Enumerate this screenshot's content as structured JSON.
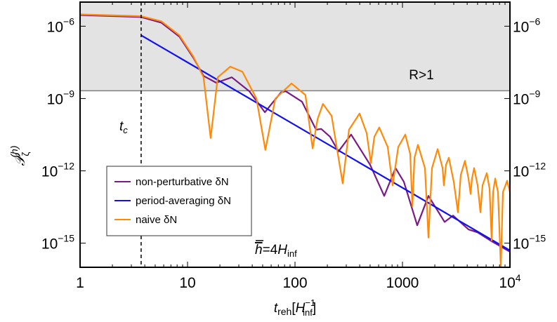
{
  "chart_data": {
    "type": "line",
    "x_scale": "log",
    "y_scale": "log",
    "xlim": [
      1,
      10000
    ],
    "ylim": [
      1e-16,
      1e-05
    ],
    "grid": false,
    "legend_position": "bottom-left",
    "xlabel": {
      "main": "t",
      "sub": "reh",
      "bracket_open": "[",
      "unit": "H",
      "unit_sup": "−1",
      "unit_sub": "inf",
      "bracket_close": "]"
    },
    "ylabel": {
      "main": "𝒫",
      "sub": "ζ",
      "sup": "(h)"
    },
    "x_ticks": [
      {
        "value": 1,
        "label": "1"
      },
      {
        "value": 10,
        "label": "10"
      },
      {
        "value": 100,
        "label": "100"
      },
      {
        "value": 1000,
        "label": "1000"
      },
      {
        "value": 10000,
        "label": "10",
        "sup": "4"
      }
    ],
    "y_ticks": [
      {
        "value": 1e-06,
        "base": "10",
        "sup": "−6"
      },
      {
        "value": 1e-09,
        "base": "10",
        "sup": "−9"
      },
      {
        "value": 1e-12,
        "base": "10",
        "sup": "−12"
      },
      {
        "value": 1e-15,
        "base": "10",
        "sup": "−15"
      }
    ],
    "shaded_region": {
      "label": "R>1",
      "y_min": 2.1e-09,
      "color": "#e3e3e3",
      "boundary_color": "#808080"
    },
    "vertical_line": {
      "x": 3.7,
      "label_main": "t",
      "label_sub": "c",
      "style": "dashed"
    },
    "annotation": {
      "hbar": "h",
      "rest": "=4",
      "H": "H",
      "sub": "inf"
    },
    "series": [
      {
        "name": "non-perturbative δN",
        "color": "#7b1a86",
        "points": [
          [
            1,
            2.9e-06
          ],
          [
            3.7,
            2.4e-06
          ],
          [
            5.7,
            1.4e-06
          ],
          [
            8.4,
            3.7e-07
          ],
          [
            11.3,
            5e-08
          ],
          [
            14.1,
            8.7e-09
          ],
          [
            18.5,
            4.5e-09
          ],
          [
            25.8,
            7.6e-09
          ],
          [
            37.6,
            2e-09
          ],
          [
            52.4,
            2.7e-10
          ],
          [
            74,
            1.8e-09
          ],
          [
            82,
            2e-09
          ],
          [
            116,
            7.4e-10
          ],
          [
            157,
            5.1e-11
          ],
          [
            175,
            5.5e-11
          ],
          [
            212,
            2.6e-11
          ],
          [
            254,
            6.4e-12
          ],
          [
            333,
            3.2e-11
          ],
          [
            500,
            1.8e-12
          ],
          [
            676,
            9.1e-14
          ],
          [
            861,
            1.3e-12
          ],
          [
            1030,
            3.5e-13
          ],
          [
            1371,
            5.5e-15
          ],
          [
            1746,
            9.1e-14
          ],
          [
            2466,
            7.6e-15
          ],
          [
            2960,
            1.4e-14
          ],
          [
            4115,
            3.7e-15
          ],
          [
            5003,
            2.8e-15
          ],
          [
            6760,
            1.2e-15
          ],
          [
            10000,
            4.4e-16
          ]
        ]
      },
      {
        "name": "period-averaging δN",
        "color": "#1010f0",
        "points": [
          [
            3.7,
            4.2e-07
          ],
          [
            10000,
            5e-16
          ]
        ]
      },
      {
        "name": "naive δN",
        "color": "#ff8a0a",
        "points": [
          [
            1,
            3.1e-06
          ],
          [
            3.7,
            2.6e-06
          ],
          [
            5.7,
            1.6e-06
          ],
          [
            8.4,
            4.2e-07
          ],
          [
            11.3,
            5.6e-08
          ],
          [
            14.1,
            7.6e-09
          ],
          [
            16.4,
            2.3e-11
          ],
          [
            19.1,
            7.6e-09
          ],
          [
            25,
            2.1e-08
          ],
          [
            32.4,
            1.3e-08
          ],
          [
            43.8,
            1e-09
          ],
          [
            53,
            7.4e-12
          ],
          [
            65.6,
            1e-09
          ],
          [
            92.7,
            4.2e-09
          ],
          [
            125,
            1.4e-09
          ],
          [
            146,
            8.5e-12
          ],
          [
            162,
            1.4e-10
          ],
          [
            182,
            6e-10
          ],
          [
            219,
            1.9e-10
          ],
          [
            278,
            3e-13
          ],
          [
            318,
            5.1e-11
          ],
          [
            399,
            2.4e-10
          ],
          [
            464,
            3.7e-11
          ],
          [
            508,
            2.1e-12
          ],
          [
            548,
            2.6e-11
          ],
          [
            608,
            6.3e-11
          ],
          [
            729,
            9.8e-12
          ],
          [
            810,
            2.5e-13
          ],
          [
            914,
            9.8e-12
          ],
          [
            1062,
            3.2e-11
          ],
          [
            1180,
            5e-12
          ],
          [
            1236,
            3.3e-14
          ],
          [
            1293,
            3.5e-12
          ],
          [
            1393,
            1.2e-11
          ],
          [
            1619,
            1.3e-12
          ],
          [
            1746,
            1.7e-15
          ],
          [
            1882,
            1.3e-12
          ],
          [
            2124,
            8e-12
          ],
          [
            2360,
            1.3e-12
          ],
          [
            2430,
            2.5e-13
          ],
          [
            2543,
            1.8e-12
          ],
          [
            2700,
            3.5e-12
          ],
          [
            3000,
            3.5e-13
          ],
          [
            3283,
            1.9e-14
          ],
          [
            3486,
            6.8e-13
          ],
          [
            3816,
            2.6e-12
          ],
          [
            4115,
            4.8e-13
          ],
          [
            4305,
            1.1e-13
          ],
          [
            4437,
            4.8e-13
          ],
          [
            4645,
            1.3e-12
          ],
          [
            5003,
            2.5e-13
          ],
          [
            5313,
            1.9e-14
          ],
          [
            5560,
            2.5e-13
          ],
          [
            6085,
            8.1e-13
          ],
          [
            6460,
            1.8e-13
          ],
          [
            6760,
            1.3e-15
          ],
          [
            6970,
            1.3e-13
          ],
          [
            7290,
            4.8e-13
          ],
          [
            7740,
            1.3e-13
          ],
          [
            8220,
            1.1e-16
          ],
          [
            8600,
            1.3e-13
          ],
          [
            9420,
            3.9e-13
          ],
          [
            10000,
            1.3e-13
          ]
        ]
      }
    ]
  }
}
